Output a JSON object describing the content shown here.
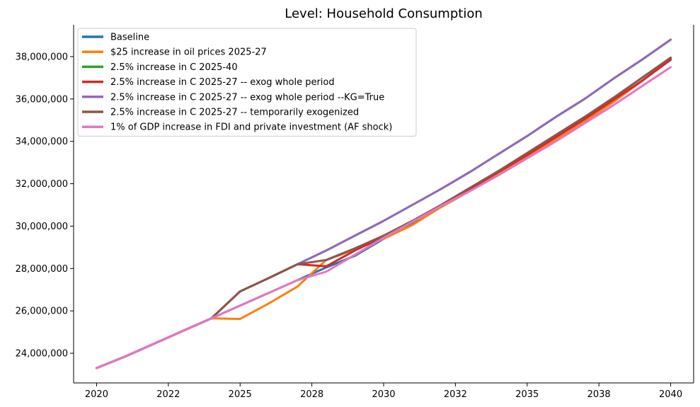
{
  "chart_data": {
    "type": "line",
    "title": "Level: Household Consumption",
    "xlabel": "",
    "ylabel": "",
    "x": [
      2020,
      2021,
      2022,
      2023,
      2024,
      2025,
      2026,
      2027,
      2028,
      2029,
      2030,
      2031,
      2032,
      2033,
      2034,
      2035,
      2036,
      2037,
      2038,
      2039,
      2040
    ],
    "xlim": [
      2019.2,
      2040.8
    ],
    "ylim": [
      22600000,
      39500000
    ],
    "x_ticks": [
      {
        "value": 2020,
        "label": "2020"
      },
      {
        "value": 2022.5,
        "label": "2022"
      },
      {
        "value": 2025,
        "label": "2025"
      },
      {
        "value": 2027.5,
        "label": "2028"
      },
      {
        "value": 2030,
        "label": "2030"
      },
      {
        "value": 2032.5,
        "label": "2032"
      },
      {
        "value": 2035,
        "label": "2035"
      },
      {
        "value": 2037.5,
        "label": "2038"
      },
      {
        "value": 2040,
        "label": "2040"
      }
    ],
    "y_ticks": [
      {
        "value": 24000000,
        "label": "24,000,000"
      },
      {
        "value": 26000000,
        "label": "26,000,000"
      },
      {
        "value": 28000000,
        "label": "28,000,000"
      },
      {
        "value": 30000000,
        "label": "30,000,000"
      },
      {
        "value": 32000000,
        "label": "32,000,000"
      },
      {
        "value": 34000000,
        "label": "34,000,000"
      },
      {
        "value": 36000000,
        "label": "36,000,000"
      },
      {
        "value": 38000000,
        "label": "38,000,000"
      }
    ],
    "grid": false,
    "legend_position": "top-left",
    "series": [
      {
        "name": "Baseline",
        "color": "#1f77b4",
        "values": [
          23300000,
          23850000,
          24450000,
          25050000,
          25650000,
          26250000,
          26850000,
          27450000,
          28050000,
          28600000,
          29400000,
          30150000,
          30900000,
          31650000,
          32450000,
          33250000,
          34100000,
          34950000,
          35850000,
          36850000,
          37900000
        ]
      },
      {
        "name": "$25 increase in oil prices 2025-27",
        "color": "#ff7f0e",
        "values": [
          23300000,
          23850000,
          24450000,
          25050000,
          25650000,
          25620000,
          26350000,
          27150000,
          28400000,
          28900000,
          29400000,
          30050000,
          30900000,
          31650000,
          32450000,
          33250000,
          34100000,
          34950000,
          35850000,
          36850000,
          37850000
        ]
      },
      {
        "name": "2.5% increase in C 2025-40",
        "color": "#2ca02c",
        "values": [
          23300000,
          23850000,
          24450000,
          25050000,
          25650000,
          26920000,
          27550000,
          28200000,
          28850000,
          29550000,
          30250000,
          31000000,
          31750000,
          32550000,
          33400000,
          34250000,
          35150000,
          36000000,
          36950000,
          37850000,
          38800000
        ]
      },
      {
        "name": "2.5% increase in C 2025-27 -- exog whole period",
        "color": "#d62728",
        "values": [
          23300000,
          23850000,
          24450000,
          25050000,
          25650000,
          26920000,
          27550000,
          28200000,
          28100000,
          28850000,
          29500000,
          30200000,
          30950000,
          31750000,
          32550000,
          33350000,
          34200000,
          35050000,
          35950000,
          36850000,
          37850000
        ]
      },
      {
        "name": "2.5% increase in C 2025-27 -- exog whole period --KG=True",
        "color": "#9467bd",
        "values": [
          23300000,
          23850000,
          24450000,
          25050000,
          25650000,
          26920000,
          27550000,
          28200000,
          28850000,
          29550000,
          30250000,
          31000000,
          31750000,
          32550000,
          33400000,
          34250000,
          35150000,
          36000000,
          36950000,
          37850000,
          38800000
        ]
      },
      {
        "name": "2.5% increase in C 2025-27 -- temporarily exogenized",
        "color": "#8c564b",
        "values": [
          23300000,
          23850000,
          24450000,
          25050000,
          25650000,
          26920000,
          27550000,
          28200000,
          28400000,
          28950000,
          29550000,
          30250000,
          31000000,
          31800000,
          32600000,
          33450000,
          34300000,
          35150000,
          36050000,
          37000000,
          37950000
        ]
      },
      {
        "name": "1% of GDP increase in FDI and private investment (AF shock)",
        "color": "#e377c2",
        "values": [
          23300000,
          23850000,
          24450000,
          25050000,
          25650000,
          26250000,
          26850000,
          27450000,
          27850000,
          28650000,
          29450000,
          30200000,
          30950000,
          31650000,
          32400000,
          33200000,
          34000000,
          34850000,
          35700000,
          36600000,
          37500000
        ]
      }
    ]
  }
}
